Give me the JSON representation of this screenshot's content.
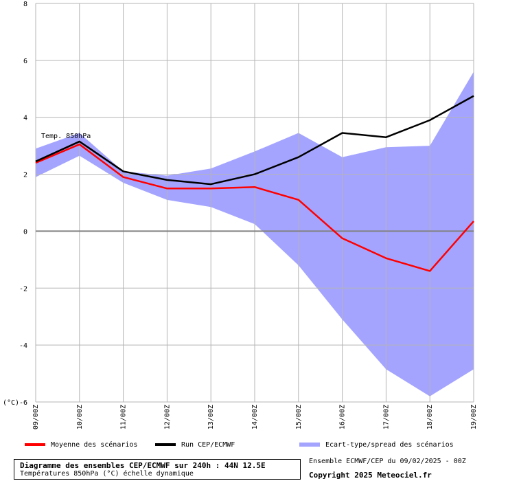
{
  "chart_data": {
    "type": "line",
    "ylabel": "(°C)",
    "ylim": [
      -6,
      8
    ],
    "yticks": [
      -6,
      -4,
      -2,
      0,
      2,
      4,
      6,
      8
    ],
    "categories": [
      "09/00Z",
      "10/00Z",
      "11/00Z",
      "12/00Z",
      "13/00Z",
      "14/00Z",
      "15/00Z",
      "16/00Z",
      "17/00Z",
      "18/00Z",
      "19/00Z"
    ],
    "annotation": "Temp. 850hPa",
    "grid": true,
    "series": [
      {
        "name": "Moyenne des scénarios",
        "color": "#ff0000",
        "values": [
          2.4,
          3.05,
          1.9,
          1.5,
          1.5,
          1.55,
          1.1,
          -0.25,
          -0.95,
          -1.4,
          0.35
        ]
      },
      {
        "name": "Run CEP/ECMWF",
        "color": "#000000",
        "values": [
          2.45,
          3.15,
          2.1,
          1.8,
          1.65,
          2.0,
          2.6,
          3.45,
          3.3,
          3.9,
          4.75
        ]
      }
    ],
    "band": {
      "name": "Ecart-type/spread des scénarios",
      "color": "#a4a4ff",
      "upper": [
        2.9,
        3.45,
        2.1,
        1.95,
        2.2,
        2.8,
        3.45,
        2.6,
        2.95,
        3.0,
        5.6
      ],
      "lower": [
        1.9,
        2.65,
        1.7,
        1.1,
        0.85,
        0.25,
        -1.2,
        -3.1,
        -4.85,
        -5.8,
        -4.85
      ]
    }
  },
  "title": {
    "line1": "Diagramme des ensembles CEP/ECMWF sur 240h : 44N 12.5E",
    "line2": "Températures 850hPa (°C) échelle dynamique"
  },
  "info": {
    "ensemble": "Ensemble ECMWF/CEP du 09/02/2025 - 00Z",
    "copyright": "Copyright 2025 Meteociel.fr"
  }
}
